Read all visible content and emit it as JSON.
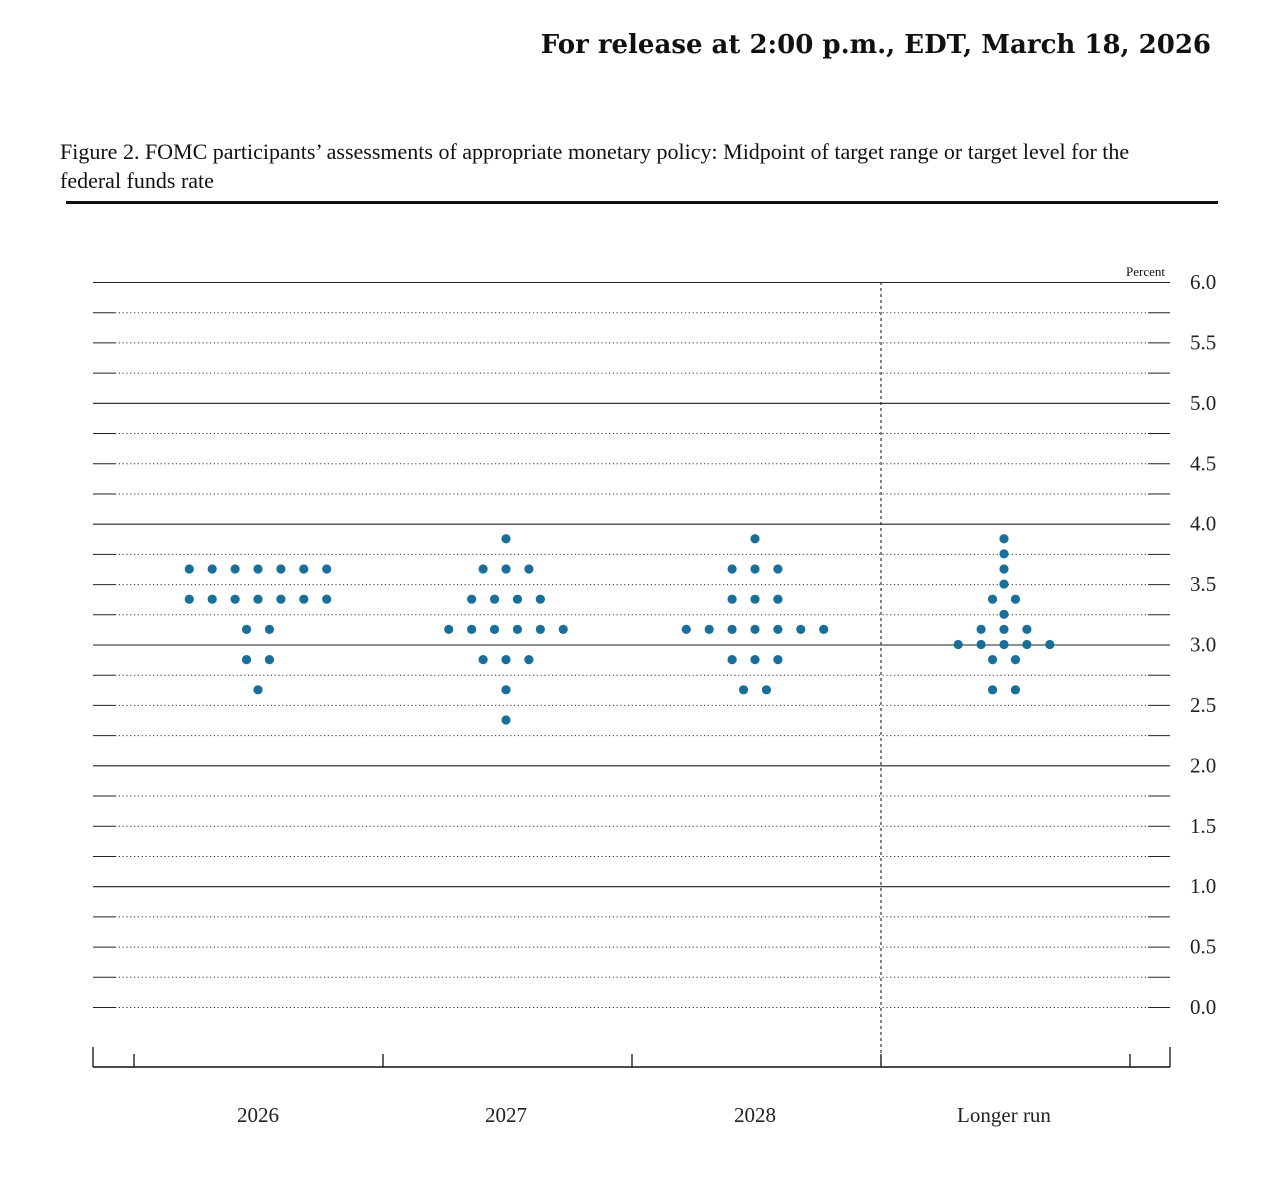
{
  "header": {
    "release": "For release at 2:00 p.m., EDT, March 18, 2026",
    "figure_title": "Figure 2. FOMC participants’ assessments of appropriate monetary policy: Midpoint of target range or target level for the federal funds rate"
  },
  "chart_data": {
    "type": "scatter",
    "title": "Figure 2. FOMC participants’ assessments of appropriate monetary policy: Midpoint of target range or target level for the federal funds rate",
    "ylabel": "Percent",
    "ylim": [
      0,
      6
    ],
    "yticks": [
      0.0,
      0.5,
      1.0,
      1.5,
      2.0,
      2.5,
      3.0,
      3.5,
      4.0,
      4.5,
      5.0,
      5.5,
      6.0
    ],
    "ytick_labels": [
      "0.0",
      "0.5",
      "1.0",
      "1.5",
      "2.0",
      "2.5",
      "3.0",
      "3.5",
      "4.0",
      "4.5",
      "5.0",
      "5.5",
      "6.0"
    ],
    "categories": [
      "2026",
      "2027",
      "2028",
      "Longer run"
    ],
    "dot_color": "#1a6e9a",
    "dots": [
      {
        "category": "2026",
        "counts": [
          [
            3.625,
            7
          ],
          [
            3.375,
            7
          ],
          [
            3.125,
            2
          ],
          [
            2.875,
            2
          ],
          [
            2.625,
            1
          ]
        ]
      },
      {
        "category": "2027",
        "counts": [
          [
            3.875,
            1
          ],
          [
            3.625,
            3
          ],
          [
            3.375,
            4
          ],
          [
            3.125,
            6
          ],
          [
            2.875,
            3
          ],
          [
            2.625,
            1
          ],
          [
            2.375,
            1
          ]
        ]
      },
      {
        "category": "2028",
        "counts": [
          [
            3.875,
            1
          ],
          [
            3.625,
            3
          ],
          [
            3.375,
            3
          ],
          [
            3.125,
            7
          ],
          [
            2.875,
            3
          ],
          [
            2.625,
            2
          ]
        ]
      },
      {
        "category": "Longer run",
        "counts": [
          [
            3.875,
            1
          ],
          [
            3.75,
            1
          ],
          [
            3.625,
            1
          ],
          [
            3.5,
            1
          ],
          [
            3.375,
            2
          ],
          [
            3.25,
            1
          ],
          [
            3.125,
            3
          ],
          [
            3.0,
            5
          ],
          [
            2.875,
            2
          ],
          [
            2.625,
            2
          ]
        ]
      }
    ]
  }
}
